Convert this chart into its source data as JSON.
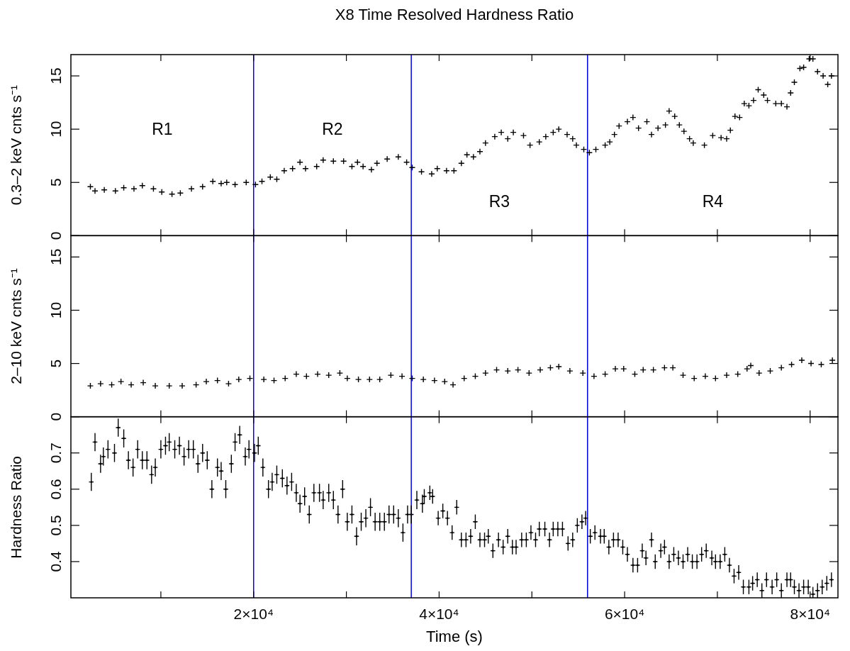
{
  "chart_data": [
    {
      "type": "scatter",
      "title": "X8 Time Resolved Hardness Ratio",
      "ylabel": "0.3–2 keV cnts s⁻¹",
      "marker": "cross",
      "tick_labels": "y",
      "xlim": [
        300,
        83000
      ],
      "xticks": [
        {
          "value": 10000,
          "label": null
        },
        {
          "value": 20000,
          "label": null
        },
        {
          "value": 30000,
          "label": null
        },
        {
          "value": 40000,
          "label": null
        },
        {
          "value": 50000,
          "label": null
        },
        {
          "value": 60000,
          "label": null
        },
        {
          "value": 70000,
          "label": null
        },
        {
          "value": 80000,
          "label": null
        }
      ],
      "ylim": [
        0,
        17
      ],
      "yticks": [
        0,
        5,
        10,
        15
      ],
      "ref_lines": [
        {
          "axis": "x",
          "value": 20000,
          "color": "#0000ff"
        },
        {
          "axis": "x",
          "value": 37000,
          "color": "#0000ff"
        },
        {
          "axis": "x",
          "value": 56000,
          "color": "#0000ff"
        }
      ],
      "annotations": [
        "R1",
        "R2",
        "R3",
        "R4"
      ],
      "series": [
        {
          "color": "#000000",
          "x": [
            2400,
            2900,
            3900,
            5100,
            6000,
            7100,
            8000,
            9200,
            10100,
            11200,
            12100,
            13300,
            14500,
            15600,
            16500,
            17100,
            18000,
            19200,
            20200,
            20900,
            21800,
            22500,
            23300,
            24200,
            25000,
            25600,
            26800,
            27500,
            28600,
            29700,
            30600,
            31200,
            31800,
            32700,
            33300,
            34400,
            35600,
            36500,
            37100,
            38100,
            39200,
            39800,
            40800,
            41600,
            42400,
            43000,
            43700,
            44400,
            45000,
            46000,
            46700,
            47400,
            48000,
            49100,
            49800,
            50800,
            51500,
            52300,
            52900,
            53800,
            54400,
            54800,
            55600,
            56200,
            56900,
            57900,
            58400,
            58900,
            59400,
            60300,
            60900,
            61500,
            62400,
            62900,
            63600,
            64400,
            64800,
            65400,
            65900,
            66400,
            67000,
            67400,
            68600,
            69500,
            70400,
            71000,
            71400,
            71900,
            72400,
            72900,
            73400,
            73900,
            74400,
            75000,
            75400,
            76300,
            76900,
            77500,
            77900,
            78300,
            78900,
            79300,
            79900,
            80300,
            80800,
            81400,
            81900,
            82300
          ],
          "values": [
            4.6,
            4.2,
            4.3,
            4.2,
            4.5,
            4.4,
            4.7,
            4.4,
            4.1,
            3.9,
            4.0,
            4.4,
            4.6,
            5.1,
            4.9,
            5.0,
            4.8,
            5.0,
            4.8,
            5.1,
            5.5,
            5.3,
            6.1,
            6.3,
            6.9,
            6.3,
            6.5,
            7.1,
            7.0,
            7.0,
            6.5,
            6.9,
            6.5,
            6.2,
            6.8,
            7.2,
            7.4,
            6.9,
            6.4,
            6.0,
            5.8,
            6.3,
            6.1,
            6.1,
            6.8,
            7.6,
            7.4,
            7.9,
            8.7,
            9.3,
            9.7,
            9.1,
            9.7,
            9.4,
            8.5,
            8.8,
            9.3,
            9.7,
            10.0,
            9.5,
            9.1,
            8.5,
            8.1,
            7.8,
            8.1,
            8.5,
            8.8,
            9.5,
            10.3,
            10.7,
            11.1,
            10.1,
            10.7,
            9.5,
            10.1,
            10.4,
            11.7,
            11.2,
            10.4,
            9.8,
            9.1,
            8.7,
            8.5,
            9.4,
            9.2,
            9.1,
            9.9,
            11.2,
            11.1,
            12.4,
            12.2,
            12.7,
            13.7,
            13.2,
            12.7,
            12.4,
            12.4,
            12.1,
            13.4,
            14.4,
            15.7,
            15.8,
            16.6,
            16.6,
            15.4,
            15.0,
            14.2,
            15.0
          ]
        }
      ]
    },
    {
      "type": "scatter",
      "ylabel": "2–10 keV cnts s⁻¹",
      "marker": "cross",
      "tick_labels": "y",
      "xlim": [
        300,
        83000
      ],
      "xticks": [
        {
          "value": 10000,
          "label": null
        },
        {
          "value": 20000,
          "label": null
        },
        {
          "value": 30000,
          "label": null
        },
        {
          "value": 40000,
          "label": null
        },
        {
          "value": 50000,
          "label": null
        },
        {
          "value": 60000,
          "label": null
        },
        {
          "value": 70000,
          "label": null
        },
        {
          "value": 80000,
          "label": null
        }
      ],
      "ylim": [
        0,
        17
      ],
      "yticks": [
        0,
        5,
        10,
        15
      ],
      "ref_lines": [
        {
          "axis": "x",
          "value": 20000,
          "color": "#0000ff"
        },
        {
          "axis": "x",
          "value": 37000,
          "color": "#0000ff"
        },
        {
          "axis": "x",
          "value": 56000,
          "color": "#0000ff"
        }
      ],
      "series": [
        {
          "color": "#000000",
          "x": [
            2400,
            3500,
            4700,
            5700,
            6800,
            8100,
            9400,
            10900,
            12300,
            13800,
            14900,
            16100,
            17300,
            18400,
            19600,
            21100,
            22200,
            23400,
            24600,
            25700,
            26900,
            28100,
            29300,
            30100,
            31300,
            32500,
            33600,
            34800,
            36000,
            37100,
            38300,
            39500,
            40600,
            41500,
            42700,
            43900,
            45000,
            46200,
            47400,
            48500,
            49700,
            50900,
            52000,
            52900,
            54100,
            55500,
            56700,
            57900,
            59000,
            59900,
            61100,
            62000,
            63100,
            64300,
            65200,
            66300,
            67500,
            68700,
            69800,
            71000,
            72200,
            73200,
            73600,
            74500,
            75700,
            76900,
            78000,
            79100,
            80100,
            81200,
            82400
          ],
          "values": [
            2.9,
            3.1,
            3.0,
            3.3,
            3.0,
            3.2,
            2.9,
            2.9,
            2.9,
            3.0,
            3.3,
            3.4,
            3.1,
            3.5,
            3.6,
            3.5,
            3.4,
            3.6,
            4.0,
            3.8,
            4.0,
            3.9,
            4.1,
            3.6,
            3.5,
            3.5,
            3.5,
            3.9,
            3.8,
            3.6,
            3.5,
            3.4,
            3.3,
            3.0,
            3.6,
            3.8,
            4.1,
            4.4,
            4.3,
            4.4,
            4.1,
            4.4,
            4.6,
            4.7,
            4.3,
            4.1,
            3.8,
            4.0,
            4.5,
            4.5,
            4.0,
            4.4,
            4.4,
            4.6,
            4.6,
            3.9,
            3.6,
            3.8,
            3.6,
            3.9,
            4.0,
            4.5,
            4.8,
            4.1,
            4.3,
            4.6,
            4.9,
            5.3,
            5.0,
            4.9,
            5.3
          ]
        }
      ]
    },
    {
      "type": "scatter",
      "ylabel": "Hardness Ratio",
      "xlabel": "Time (s)",
      "marker": "cross",
      "xlim": [
        300,
        83000
      ],
      "xticks": [
        {
          "value": 10000,
          "label": null
        },
        {
          "value": 20000,
          "label": "2×10⁴"
        },
        {
          "value": 30000,
          "label": null
        },
        {
          "value": 40000,
          "label": "4×10⁴"
        },
        {
          "value": 50000,
          "label": null
        },
        {
          "value": 60000,
          "label": "6×10⁴"
        },
        {
          "value": 70000,
          "label": null
        },
        {
          "value": 80000,
          "label": "8×10⁴"
        }
      ],
      "ylim": [
        0.3,
        0.8
      ],
      "yticks": [
        0.4,
        0.5,
        0.6,
        0.7
      ],
      "ref_lines": [
        {
          "axis": "x",
          "value": 20000,
          "color": "#0000ff"
        },
        {
          "axis": "x",
          "value": 37000,
          "color": "#0000ff"
        },
        {
          "axis": "x",
          "value": 56000,
          "color": "#0000ff"
        }
      ],
      "series": [
        {
          "color": "#000000",
          "x": [
            2500,
            2900,
            3500,
            3800,
            4300,
            5000,
            5400,
            6000,
            6500,
            7000,
            7500,
            8000,
            8500,
            9000,
            9400,
            10000,
            10500,
            10900,
            11500,
            12000,
            12500,
            13000,
            13500,
            14000,
            14500,
            15000,
            15500,
            16100,
            16500,
            17000,
            17600,
            18000,
            18500,
            19100,
            19500,
            20100,
            20500,
            21000,
            21600,
            22000,
            22500,
            23100,
            23600,
            24100,
            24600,
            25000,
            25500,
            26000,
            26500,
            27100,
            27500,
            28100,
            28600,
            29100,
            29600,
            30100,
            30600,
            31100,
            31600,
            32100,
            32600,
            33100,
            33600,
            34100,
            34600,
            35100,
            35600,
            36100,
            36600,
            37000,
            37600,
            38200,
            38400,
            39000,
            39300,
            39900,
            40400,
            40900,
            41400,
            41900,
            42400,
            42900,
            43400,
            43900,
            44400,
            44900,
            45300,
            45800,
            46400,
            46900,
            47400,
            47900,
            48300,
            48900,
            49400,
            49900,
            50400,
            50800,
            51400,
            51900,
            52300,
            52800,
            53300,
            53900,
            54400,
            54900,
            55400,
            55800,
            56300,
            56800,
            57400,
            57800,
            58300,
            58800,
            59300,
            59800,
            60300,
            60900,
            61400,
            61900,
            62300,
            62900,
            63300,
            63900,
            64300,
            64800,
            65300,
            65800,
            66300,
            66800,
            67300,
            67800,
            68300,
            68800,
            69400,
            69800,
            70300,
            70800,
            71300,
            71800,
            72300,
            72800,
            73400,
            73800,
            74300,
            74800,
            75300,
            75900,
            76400,
            76900,
            77500,
            77900,
            78300,
            78800,
            79300,
            79800,
            80300,
            80800,
            81300,
            81800,
            82300
          ],
          "values": [
            0.62,
            0.73,
            0.67,
            0.69,
            0.71,
            0.7,
            0.77,
            0.74,
            0.68,
            0.66,
            0.71,
            0.68,
            0.68,
            0.64,
            0.66,
            0.71,
            0.72,
            0.73,
            0.71,
            0.72,
            0.69,
            0.71,
            0.71,
            0.67,
            0.7,
            0.68,
            0.6,
            0.66,
            0.65,
            0.6,
            0.67,
            0.73,
            0.75,
            0.69,
            0.71,
            0.7,
            0.72,
            0.66,
            0.6,
            0.62,
            0.64,
            0.63,
            0.61,
            0.62,
            0.59,
            0.56,
            0.58,
            0.53,
            0.59,
            0.59,
            0.57,
            0.59,
            0.57,
            0.53,
            0.6,
            0.51,
            0.53,
            0.47,
            0.51,
            0.52,
            0.55,
            0.51,
            0.51,
            0.51,
            0.53,
            0.53,
            0.52,
            0.48,
            0.53,
            0.53,
            0.57,
            0.56,
            0.58,
            0.59,
            0.58,
            0.52,
            0.54,
            0.52,
            0.48,
            0.55,
            0.46,
            0.46,
            0.47,
            0.51,
            0.46,
            0.46,
            0.47,
            0.43,
            0.46,
            0.44,
            0.47,
            0.44,
            0.44,
            0.46,
            0.46,
            0.48,
            0.46,
            0.49,
            0.49,
            0.46,
            0.49,
            0.49,
            0.49,
            0.45,
            0.46,
            0.5,
            0.51,
            0.52,
            0.47,
            0.48,
            0.47,
            0.47,
            0.44,
            0.46,
            0.46,
            0.44,
            0.42,
            0.39,
            0.39,
            0.43,
            0.41,
            0.46,
            0.4,
            0.43,
            0.44,
            0.4,
            0.42,
            0.41,
            0.4,
            0.42,
            0.4,
            0.4,
            0.42,
            0.43,
            0.41,
            0.4,
            0.4,
            0.42,
            0.39,
            0.36,
            0.37,
            0.33,
            0.33,
            0.34,
            0.35,
            0.32,
            0.35,
            0.33,
            0.35,
            0.32,
            0.35,
            0.35,
            0.33,
            0.32,
            0.33,
            0.33,
            0.31,
            0.32,
            0.33,
            0.34,
            0.35
          ],
          "errors": [
            0.025,
            0.025,
            0.025,
            0.025,
            0.025,
            0.025,
            0.025,
            0.025,
            0.025,
            0.025,
            0.025,
            0.025,
            0.025,
            0.025,
            0.025,
            0.025,
            0.025,
            0.025,
            0.025,
            0.025,
            0.025,
            0.025,
            0.025,
            0.025,
            0.025,
            0.025,
            0.025,
            0.025,
            0.025,
            0.025,
            0.025,
            0.025,
            0.025,
            0.025,
            0.025,
            0.025,
            0.025,
            0.025,
            0.025,
            0.025,
            0.025,
            0.025,
            0.025,
            0.025,
            0.025,
            0.025,
            0.025,
            0.025,
            0.025,
            0.025,
            0.025,
            0.025,
            0.025,
            0.025,
            0.025,
            0.025,
            0.025,
            0.025,
            0.025,
            0.025,
            0.025,
            0.025,
            0.025,
            0.025,
            0.025,
            0.025,
            0.025,
            0.025,
            0.025,
            0.025,
            0.025,
            0.025,
            0.02,
            0.02,
            0.02,
            0.02,
            0.02,
            0.02,
            0.02,
            0.02,
            0.02,
            0.02,
            0.02,
            0.02,
            0.02,
            0.02,
            0.02,
            0.02,
            0.02,
            0.02,
            0.02,
            0.02,
            0.02,
            0.02,
            0.02,
            0.02,
            0.02,
            0.02,
            0.02,
            0.02,
            0.02,
            0.02,
            0.02,
            0.02,
            0.02,
            0.02,
            0.02,
            0.02,
            0.02,
            0.02,
            0.02,
            0.02,
            0.02,
            0.02,
            0.02,
            0.02,
            0.02,
            0.02,
            0.02,
            0.02,
            0.02,
            0.02,
            0.02,
            0.02,
            0.02,
            0.02,
            0.02,
            0.02,
            0.02,
            0.02,
            0.02,
            0.02,
            0.02,
            0.02,
            0.02,
            0.02,
            0.02,
            0.02,
            0.02,
            0.02,
            0.02,
            0.02,
            0.02,
            0.02,
            0.02,
            0.02,
            0.02,
            0.02,
            0.02,
            0.02,
            0.02,
            0.02,
            0.02,
            0.02,
            0.02,
            0.02,
            0.02,
            0.02,
            0.02,
            0.02,
            0.02
          ],
          "xerrors": [
            250,
            250,
            250,
            250,
            250,
            250,
            250,
            250,
            250,
            250,
            250,
            250,
            250,
            250,
            250,
            250,
            250,
            250,
            250,
            250,
            250,
            250,
            250,
            250,
            250,
            250,
            250,
            250,
            250,
            250,
            250,
            250,
            250,
            250,
            250,
            250,
            250,
            250,
            250,
            250,
            250,
            250,
            250,
            250,
            250,
            250,
            250,
            250,
            250,
            250,
            250,
            250,
            250,
            250,
            250,
            250,
            250,
            250,
            250,
            250,
            250,
            250,
            250,
            250,
            250,
            250,
            250,
            250,
            250,
            250,
            250,
            250,
            250,
            250,
            250,
            250,
            250,
            250,
            250,
            250,
            250,
            250,
            250,
            250,
            250,
            250,
            250,
            250,
            250,
            250,
            250,
            250,
            250,
            250,
            250,
            250,
            250,
            250,
            250,
            250,
            250,
            250,
            250,
            250,
            250,
            250,
            250,
            250,
            250,
            250,
            250,
            250,
            250,
            250,
            250,
            250,
            250,
            250,
            250,
            250,
            250,
            250,
            250,
            250,
            250,
            250,
            250,
            250,
            250,
            250,
            250,
            250,
            250,
            250,
            250,
            250,
            250,
            250,
            250,
            250,
            250,
            250,
            250,
            250,
            250,
            250,
            250,
            250,
            250,
            250,
            250,
            250,
            250,
            250,
            250,
            250,
            250,
            250,
            250,
            250,
            250
          ]
        }
      ]
    }
  ]
}
